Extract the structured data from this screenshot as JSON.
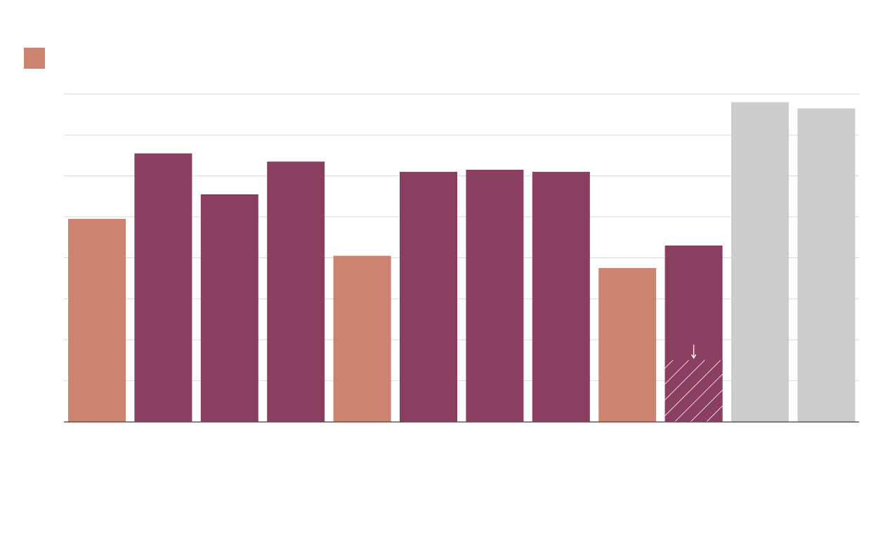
{
  "chart_data": {
    "type": "bar",
    "title": "",
    "xlabel": "",
    "ylabel": "",
    "ylim": [
      0,
      8
    ],
    "grid": true,
    "legend": {
      "placement": "top-left",
      "entries": [
        {
          "color": "#cc8470"
        }
      ]
    },
    "bars": [
      {
        "value": 4.95,
        "color": "#cc8470"
      },
      {
        "value": 6.55,
        "color": "#8a3f60"
      },
      {
        "value": 5.55,
        "color": "#8a3f60"
      },
      {
        "value": 6.35,
        "color": "#8a3f60"
      },
      {
        "value": 4.05,
        "color": "#cc8470"
      },
      {
        "value": 6.1,
        "color": "#8a3f60"
      },
      {
        "value": 6.15,
        "color": "#8a3f60"
      },
      {
        "value": 6.1,
        "color": "#8a3f60"
      },
      {
        "value": 3.75,
        "color": "#cc8470"
      },
      {
        "value": 4.3,
        "color": "#8a3f60",
        "hatched_portion": 1.5,
        "arrow": true
      },
      {
        "value": 7.8,
        "color": "#cccccc"
      },
      {
        "value": 7.65,
        "color": "#cccccc"
      }
    ]
  },
  "colors": {
    "gridline": "#d9d9d9",
    "axis": "#555555",
    "hatch": "#ffffff"
  }
}
